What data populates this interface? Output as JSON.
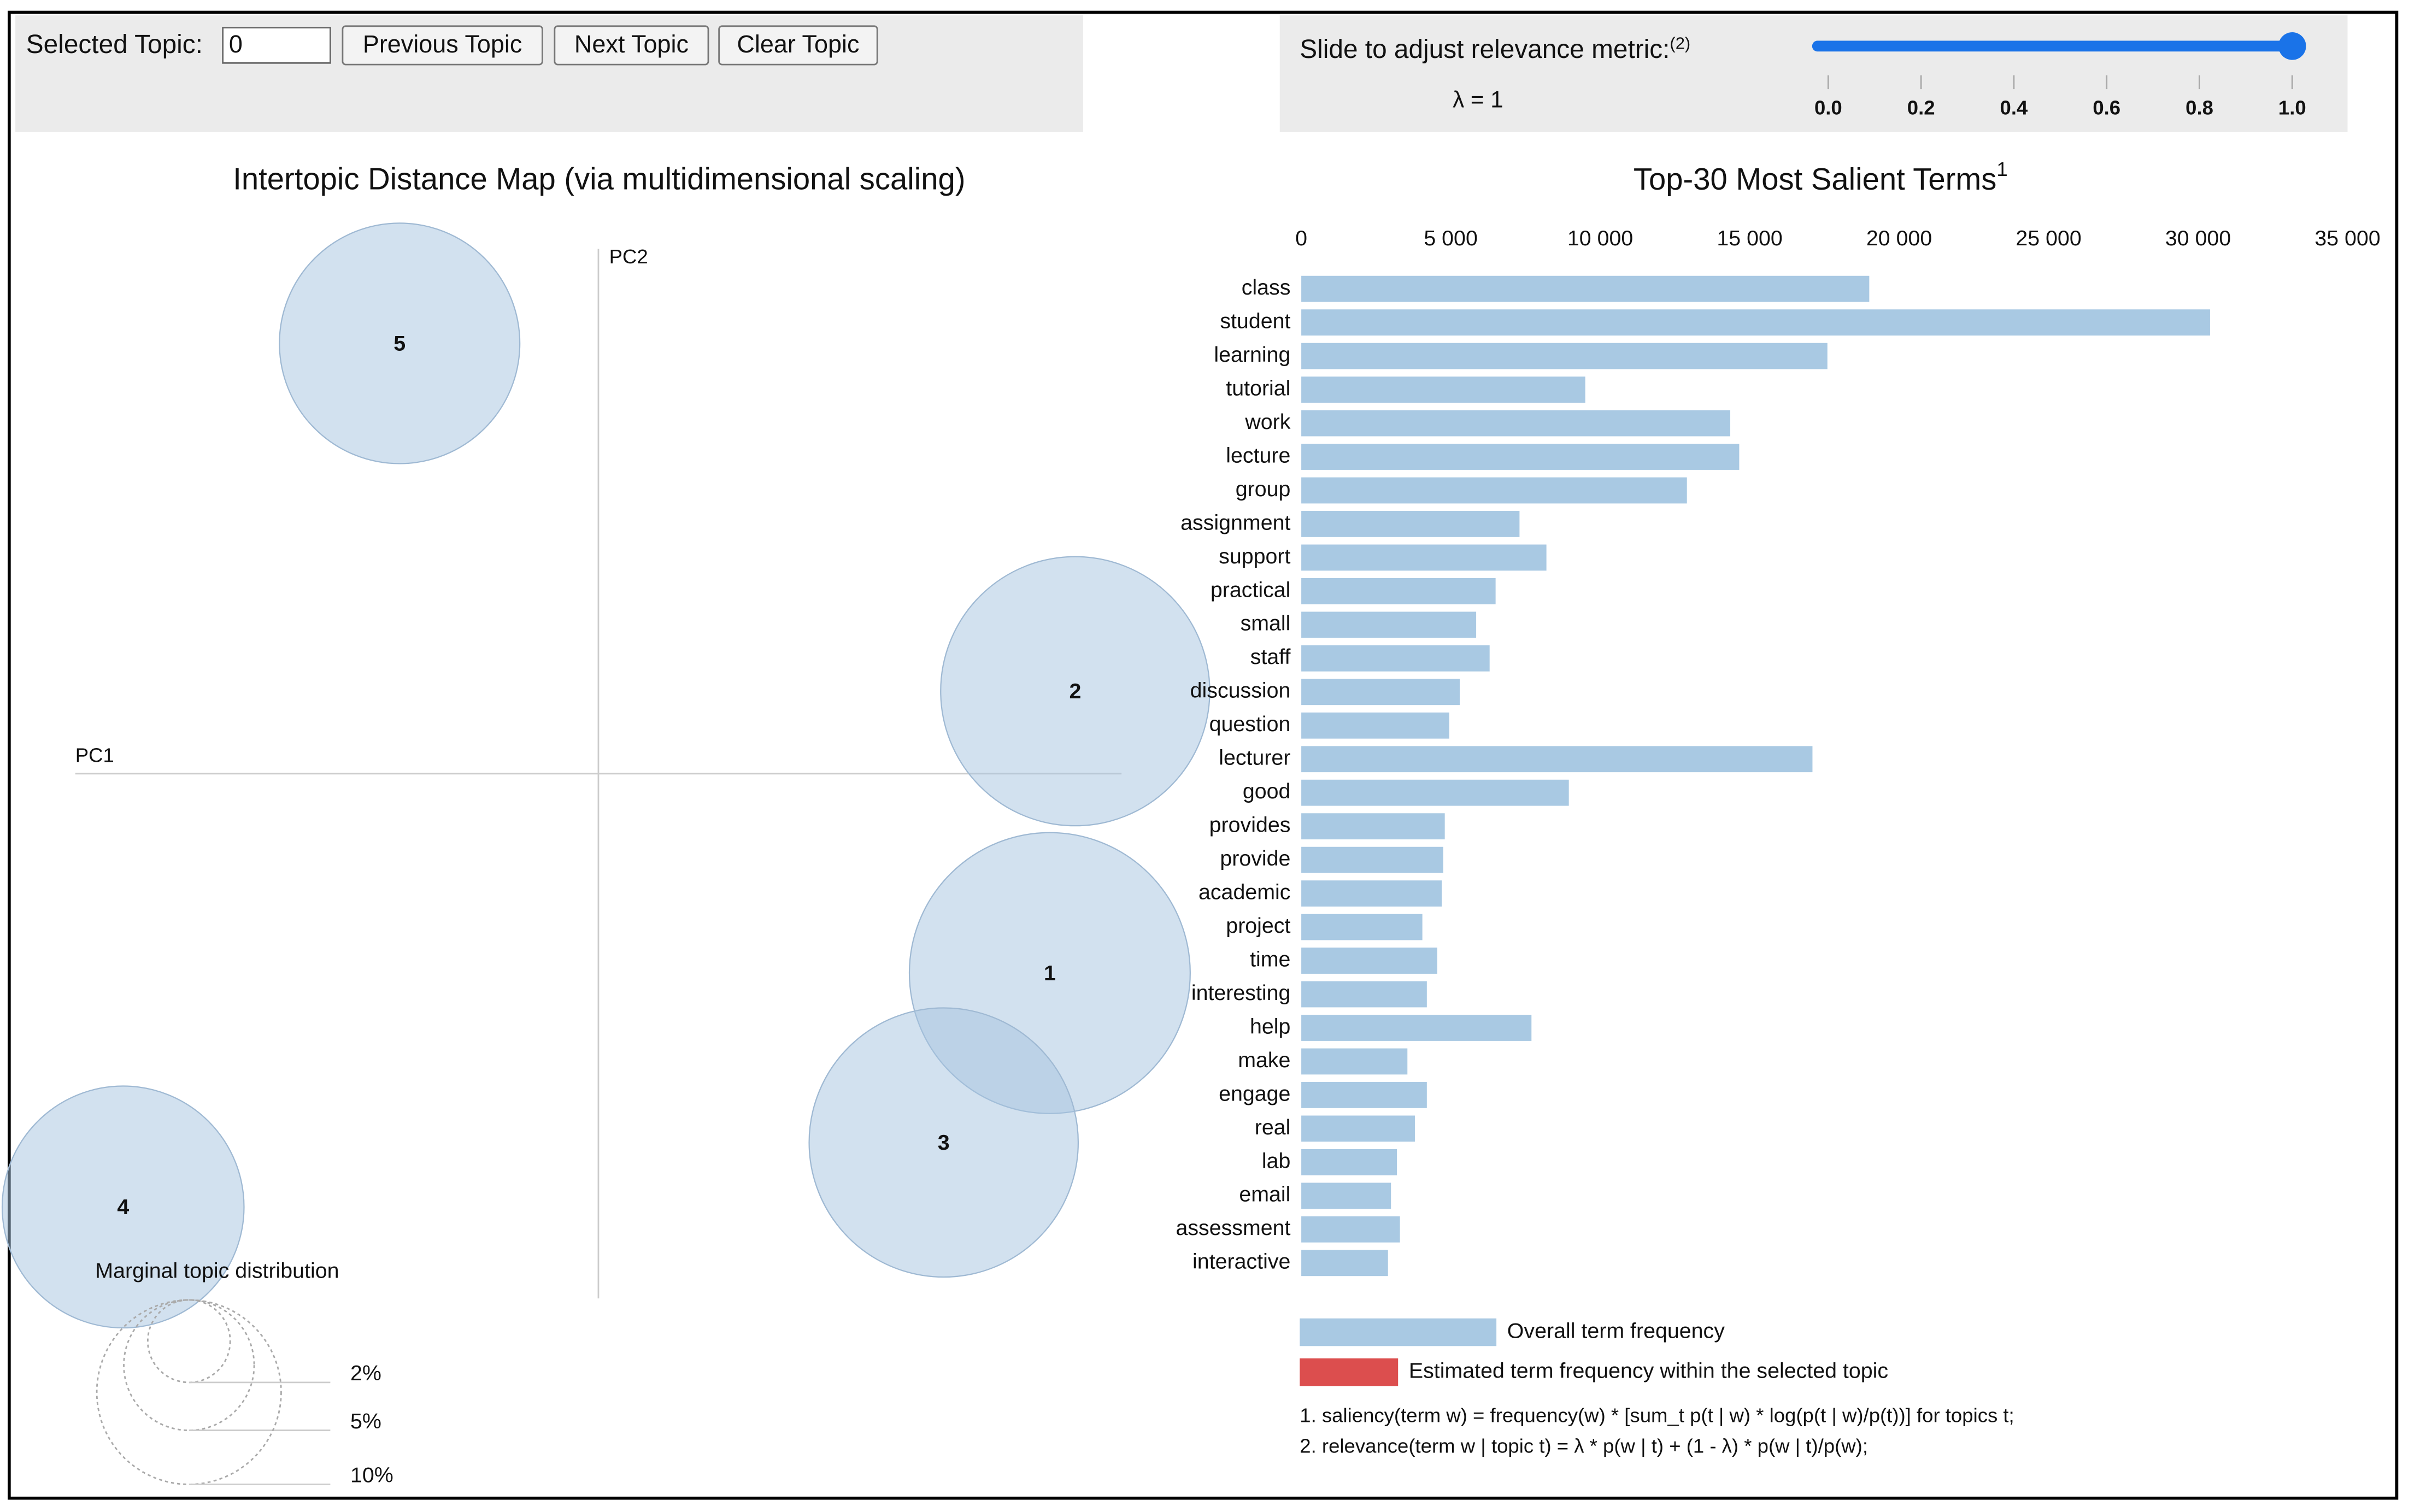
{
  "controls": {
    "selected_topic_label": "Selected Topic:",
    "selected_topic": "0",
    "buttons": [
      "Previous Topic",
      "Next Topic",
      "Clear Topic"
    ],
    "slider": {
      "label": "Slide to adjust relevance metric:",
      "label_note": "(2)",
      "lambda_label": "λ = 1",
      "value": 1,
      "lim": [
        0,
        1
      ],
      "ticks": [
        {
          "value": 0,
          "label": "0.0"
        },
        {
          "value": 0.2,
          "label": "0.2"
        },
        {
          "value": 0.4,
          "label": "0.4"
        },
        {
          "value": 0.6,
          "label": "0.6"
        },
        {
          "value": 0.8,
          "label": "0.8"
        },
        {
          "value": 1,
          "label": "1.0"
        }
      ]
    }
  },
  "chart_data": [
    {
      "type": "scatter",
      "title": "Intertopic Distance Map (via multidimensional scaling)",
      "x_label": "PC1",
      "y_label": "PC2",
      "categories": [
        "1",
        "2",
        "3",
        "4",
        "5"
      ],
      "x": [
        0.302,
        0.319,
        0.231,
        -0.318,
        -0.133
      ],
      "y": [
        -0.133,
        0.055,
        -0.246,
        -0.289,
        0.287
      ],
      "sizes": [
        23.2,
        21.3,
        21.3,
        17.2,
        17.0
      ],
      "color": "#a6c4e0",
      "xlim": [
        -0.35,
        0.35
      ],
      "ylim": [
        -0.35,
        0.35
      ],
      "size_legend": {
        "title": "Marginal topic distribution",
        "values": [
          {
            "value": 2,
            "label": "2%"
          },
          {
            "value": 5,
            "label": "5%"
          },
          {
            "value": 10,
            "label": "10%"
          }
        ]
      }
    },
    {
      "type": "bar",
      "orientation": "horizontal",
      "title": "Top-30 Most Salient Terms",
      "title_note": "1",
      "categories": [
        "class",
        "student",
        "learning",
        "tutorial",
        "work",
        "lecture",
        "group",
        "assignment",
        "support",
        "practical",
        "small",
        "staff",
        "discussion",
        "question",
        "lecturer",
        "good",
        "provides",
        "provide",
        "academic",
        "project",
        "time",
        "interesting",
        "help",
        "make",
        "engage",
        "real",
        "lab",
        "email",
        "assessment",
        "interactive"
      ],
      "values": [
        19000,
        30400,
        17600,
        9500,
        14350,
        14650,
        12900,
        7300,
        8200,
        6500,
        5850,
        6300,
        5300,
        4950,
        17100,
        8950,
        4800,
        4750,
        4700,
        4050,
        4550,
        4200,
        7700,
        3550,
        4200,
        3800,
        3200,
        3000,
        3300,
        2900
      ],
      "color": "#a9c9e3",
      "xlim": [
        0,
        35000
      ],
      "xticks": [
        0,
        {
          "value": 5000,
          "label": "5 000"
        },
        {
          "value": 10000,
          "label": "10 000"
        },
        {
          "value": 15000,
          "label": "15 000"
        },
        {
          "value": 20000,
          "label": "20 000"
        },
        {
          "value": 25000,
          "label": "25 000"
        },
        {
          "value": 30000,
          "label": "30 000"
        },
        {
          "value": 35000,
          "label": "35 000"
        }
      ],
      "legend": [
        {
          "name": "Overall term frequency",
          "color": "#a9c9e3"
        },
        {
          "name": "Estimated term frequency within the selected topic",
          "color": "#dc4e4e"
        }
      ],
      "footnotes": [
        "1. saliency(term w) = frequency(w) * [sum_t p(t | w) * log(p(t | w)/p(t))] for topics t;",
        "2. relevance(term w | topic t) = λ * p(w | t) + (1 - λ) * p(w | t)/p(w);"
      ]
    }
  ]
}
